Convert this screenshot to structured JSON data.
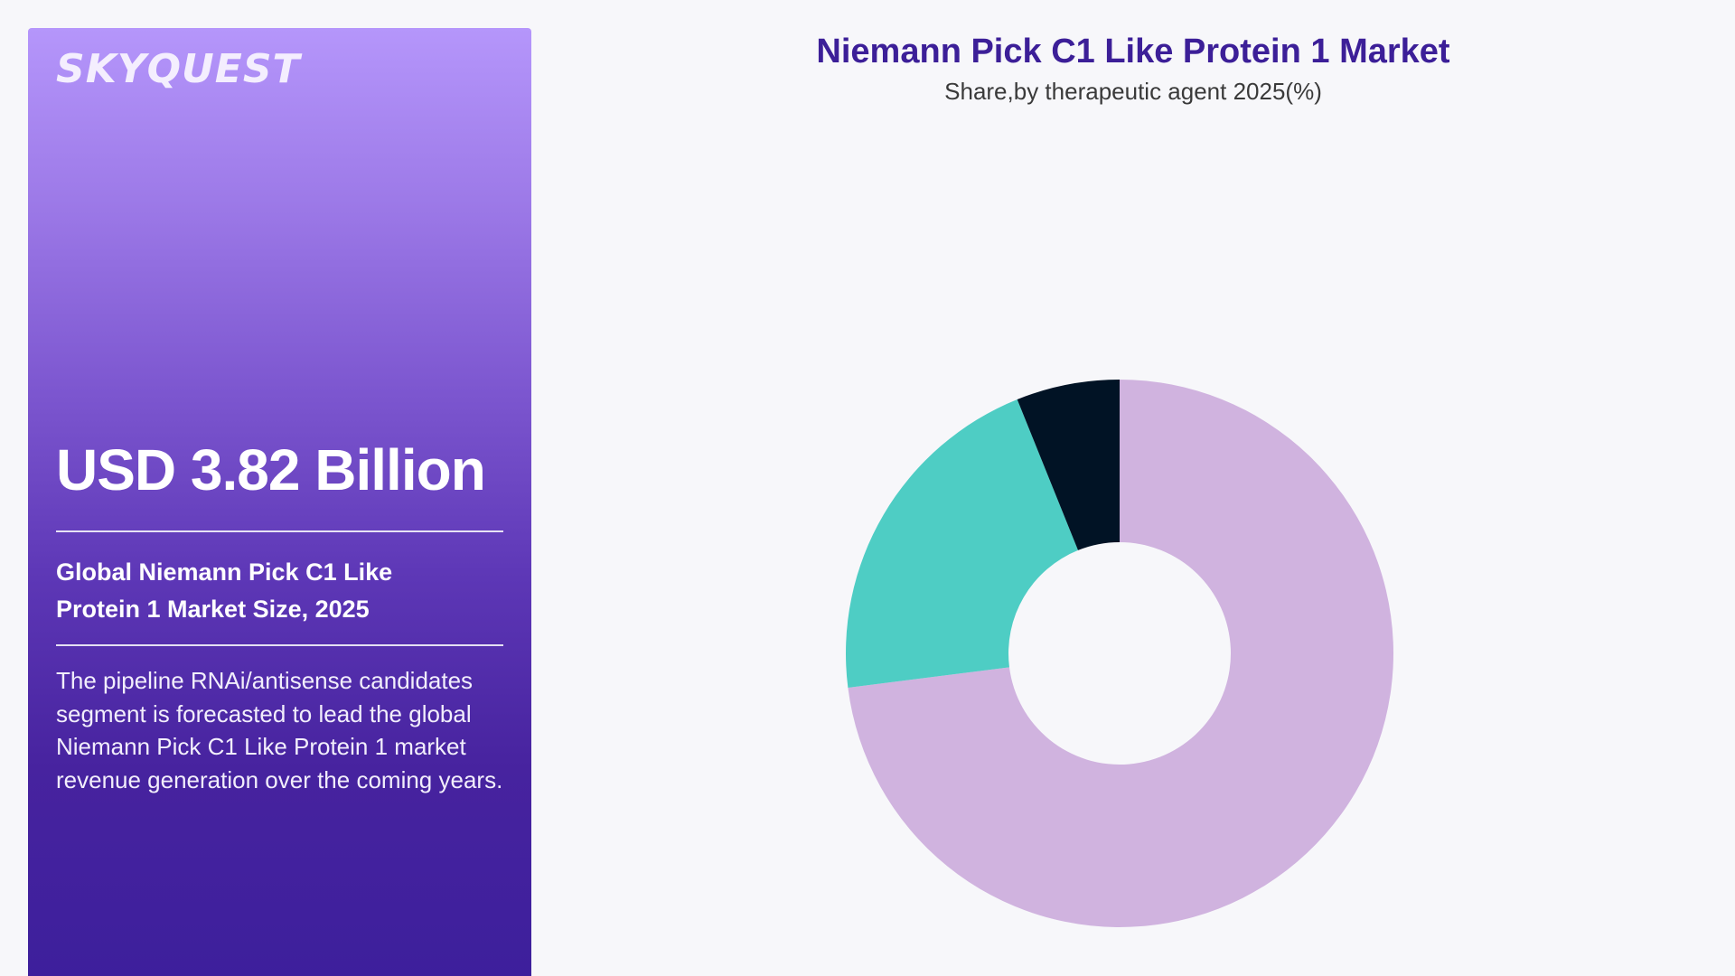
{
  "brand": {
    "logo_text": "SKYQUEST"
  },
  "panel": {
    "headline": "USD 3.82 Billion",
    "subtitle": "Global Niemann Pick C1 Like Protein 1 Market Size, 2025",
    "description": "The pipeline RNAi/antisense candidates segment is forecasted to lead the global Niemann Pick C1 Like Protein 1 market revenue generation over the coming years."
  },
  "colors": {
    "panel_top": "#b596fb",
    "panel_bottom": "#3d1f9c",
    "title": "#3c1f98"
  },
  "chart_data": {
    "type": "pie",
    "title": "Niemann Pick C1 Like Protein 1 Market",
    "subtitle": "Share,by therapeutic agent 2025(%)",
    "donut": true,
    "slices": [
      {
        "value": 73.0,
        "color": "#d0b3df"
      },
      {
        "value": 20.9,
        "color": "#4ecdc4"
      },
      {
        "value": 6.1,
        "color": "#011325"
      }
    ]
  }
}
